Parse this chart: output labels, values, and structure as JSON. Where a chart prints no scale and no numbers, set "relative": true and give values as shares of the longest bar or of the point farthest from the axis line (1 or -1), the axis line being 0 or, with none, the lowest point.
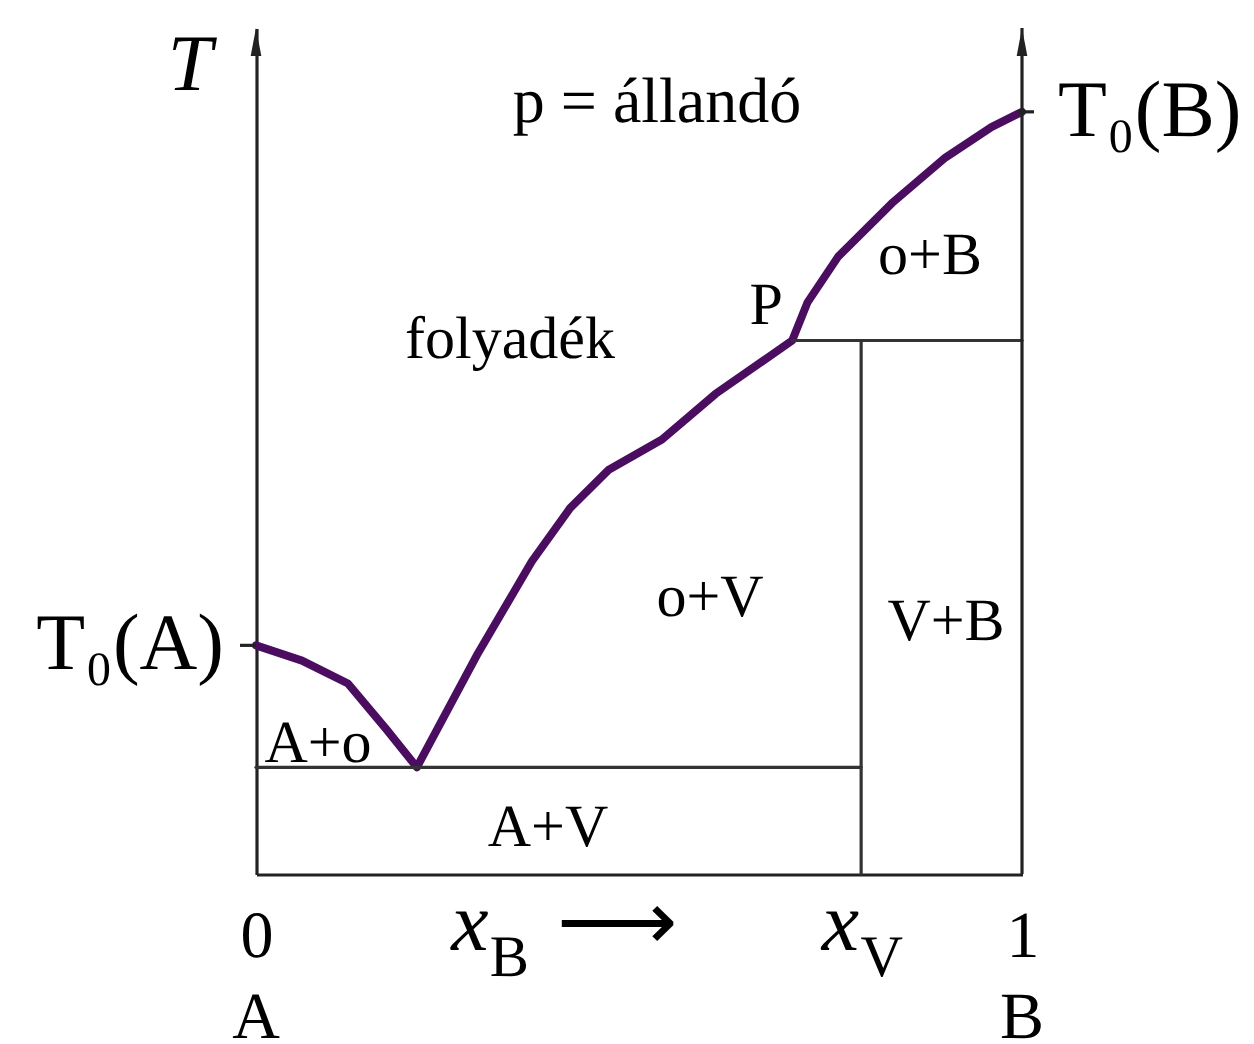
{
  "chart_data": {
    "type": "line",
    "relative": true,
    "title": "p = állandó",
    "xlabel": "x$_{B}$ ⟶",
    "ylabel": "T",
    "xlim": [
      0,
      1
    ],
    "xticks": [
      0,
      {
        "value": 0.79,
        "label": "x$_{V}$"
      },
      1
    ],
    "series": [
      {
        "color": "#4b0d5f",
        "x": [
          0,
          0.06,
          0.12,
          0.17,
          0.21,
          0.29,
          0.36,
          0.41,
          0.46,
          0.53,
          0.6,
          0.7,
          0.72,
          0.76,
          0.83,
          0.9,
          0.96,
          1
        ],
        "values": [
          0.3,
          0.28,
          0.25,
          0.19,
          0.14,
          0.29,
          0.41,
          0.48,
          0.53,
          0.57,
          0.63,
          0.7,
          0.75,
          0.81,
          0.88,
          0.94,
          0.98,
          1
        ]
      },
      {
        "color": "#333333",
        "x": [
          0,
          0.79
        ],
        "values": [
          0.14,
          0.14
        ]
      },
      {
        "color": "#333333",
        "x": [
          0.7,
          1
        ],
        "values": [
          0.7,
          0.7
        ]
      },
      {
        "color": "#333333",
        "x": [
          0.79,
          0.79
        ],
        "values": [
          0,
          0.7
        ]
      }
    ],
    "annotations": [
      {
        "text": "T₀(A)",
        "x": 0,
        "y": 0.3
      },
      {
        "text": "T₀(B)",
        "x": 1,
        "y": 1
      },
      {
        "text": "P",
        "x": 0.7,
        "y": 0.7
      },
      "folyadék",
      "o+B",
      "o+V",
      "V+B",
      "A+o",
      "A+V",
      "A",
      "B"
    ]
  }
}
